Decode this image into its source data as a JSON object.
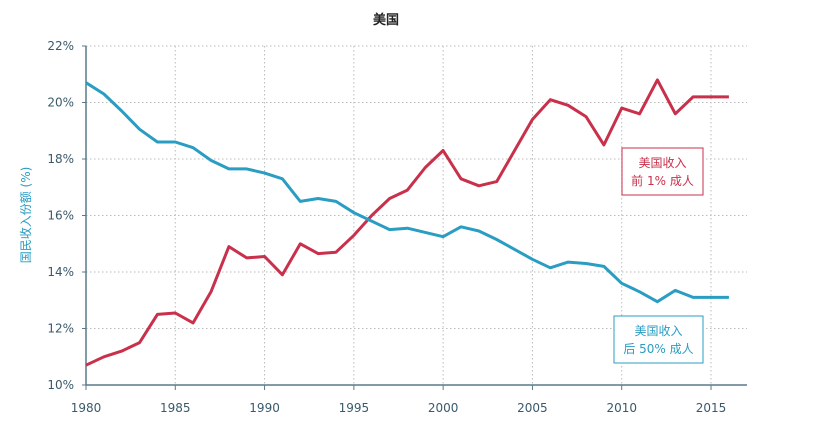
{
  "chart_data": {
    "type": "line",
    "title": "美国",
    "xlabel": "",
    "ylabel": "国民收入份额 (%)",
    "xlim": [
      1980,
      2017
    ],
    "ylim": [
      10,
      22
    ],
    "grid": true,
    "x_ticks": [
      "1980",
      "1985",
      "1990",
      "1995",
      "2000",
      "2005",
      "2010",
      "2015"
    ],
    "y_ticks": [
      "10%",
      "12%",
      "14%",
      "16%",
      "18%",
      "20%",
      "22%"
    ],
    "x": [
      1980,
      1981,
      1982,
      1983,
      1984,
      1985,
      1986,
      1987,
      1988,
      1989,
      1990,
      1991,
      1992,
      1993,
      1994,
      1995,
      1996,
      1997,
      1998,
      1999,
      2000,
      2001,
      2002,
      2003,
      2004,
      2005,
      2006,
      2007,
      2008,
      2009,
      2010,
      2011,
      2012,
      2013,
      2014,
      2015,
      2016
    ],
    "series": [
      {
        "name": "美国收入\n前 1% 成人",
        "label_lines": [
          "美国收入",
          "前 1% 成人"
        ],
        "color": "#c8304b",
        "values": [
          10.7,
          11.0,
          11.2,
          11.5,
          12.5,
          12.55,
          12.2,
          13.3,
          14.9,
          14.5,
          14.55,
          13.9,
          15.0,
          14.65,
          14.7,
          15.3,
          16.0,
          16.6,
          16.9,
          17.7,
          18.3,
          17.3,
          17.05,
          17.2,
          18.3,
          19.4,
          20.1,
          19.9,
          19.5,
          18.5,
          19.8,
          19.6,
          20.8,
          19.6,
          20.2,
          20.2,
          20.2
        ]
      },
      {
        "name": "美国收入\n后 50% 成人",
        "label_lines": [
          "美国收入",
          "后 50% 成人"
        ],
        "color": "#2a9dc2",
        "values": [
          20.7,
          20.3,
          19.7,
          19.05,
          18.6,
          18.6,
          18.4,
          17.95,
          17.65,
          17.65,
          17.5,
          17.3,
          16.5,
          16.6,
          16.5,
          16.1,
          15.8,
          15.5,
          15.55,
          15.4,
          15.25,
          15.6,
          15.45,
          15.15,
          14.8,
          14.45,
          14.15,
          14.35,
          14.3,
          14.2,
          13.6,
          13.3,
          12.95,
          13.35,
          13.1,
          13.1,
          13.1
        ]
      }
    ]
  }
}
